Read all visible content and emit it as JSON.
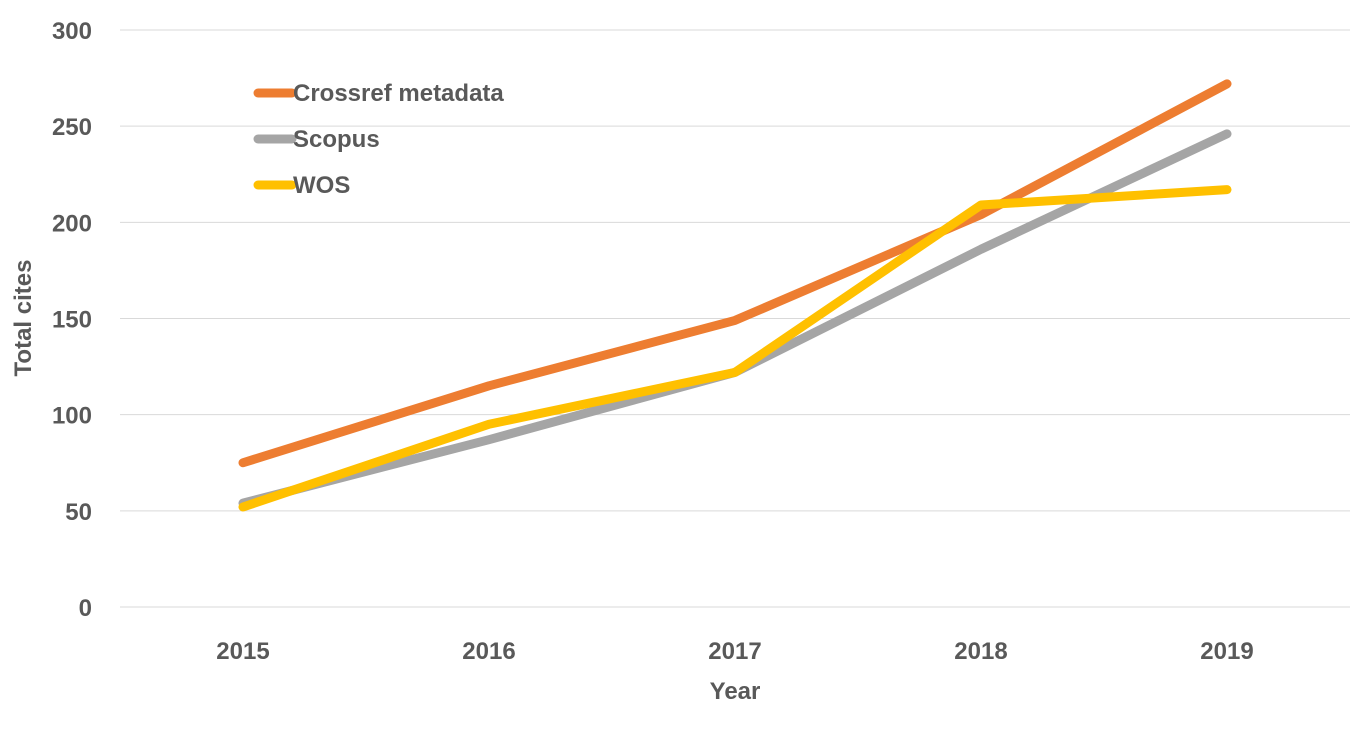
{
  "chart_data": {
    "type": "line",
    "title": "",
    "xlabel": "Year",
    "ylabel": "Total cites",
    "categories": [
      "2015",
      "2016",
      "2017",
      "2018",
      "2019"
    ],
    "ylim": [
      0,
      300
    ],
    "yticks": [
      0,
      50,
      100,
      150,
      200,
      250,
      300
    ],
    "grid": true,
    "legend_position": "top-left",
    "series": [
      {
        "name": "Crossref metadata",
        "color": "#ED7D31",
        "values": [
          75,
          115,
          149,
          204,
          272
        ]
      },
      {
        "name": "Scopus",
        "color": "#A5A5A5",
        "values": [
          54,
          87,
          122,
          186,
          246
        ]
      },
      {
        "name": "WOS",
        "color": "#FFC000",
        "values": [
          52,
          95,
          122,
          209,
          217
        ]
      }
    ]
  }
}
